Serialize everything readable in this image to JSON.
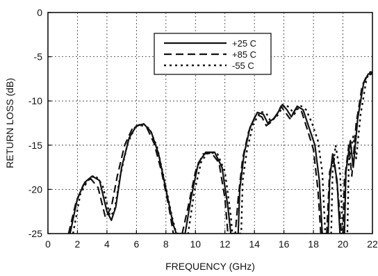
{
  "chart_data": {
    "type": "line",
    "title": "",
    "xlabel": "FREQUENCY (GHz)",
    "ylabel": "RETURN LOSS (dB)",
    "xlim": [
      0,
      22
    ],
    "ylim": [
      -25,
      0
    ],
    "xticks": [
      0,
      2,
      4,
      6,
      8,
      10,
      12,
      14,
      16,
      18,
      20,
      22
    ],
    "yticks": [
      0,
      -5,
      -10,
      -15,
      -20,
      -25
    ],
    "grid": true,
    "grid_style": "dotted",
    "legend_position": "top-center",
    "series": [
      {
        "name": "+25 C",
        "style": "solid",
        "points": [
          [
            1.5,
            -25
          ],
          [
            2.0,
            -21.0
          ],
          [
            2.5,
            -19.2
          ],
          [
            3.0,
            -18.5
          ],
          [
            3.5,
            -19.0
          ],
          [
            4.0,
            -22.5
          ],
          [
            4.3,
            -23.5
          ],
          [
            4.6,
            -22.0
          ],
          [
            5.0,
            -17.5
          ],
          [
            5.5,
            -14.2
          ],
          [
            6.0,
            -12.8
          ],
          [
            6.5,
            -12.6
          ],
          [
            7.0,
            -13.5
          ],
          [
            7.5,
            -16.0
          ],
          [
            8.0,
            -20.0
          ],
          [
            8.5,
            -24.0
          ],
          [
            8.7,
            -25
          ],
          [
            9.3,
            -25
          ],
          [
            9.7,
            -21.0
          ],
          [
            10.2,
            -17.0
          ],
          [
            10.7,
            -15.8
          ],
          [
            11.3,
            -15.8
          ],
          [
            11.8,
            -17.5
          ],
          [
            12.2,
            -22.0
          ],
          [
            12.4,
            -25
          ],
          [
            12.9,
            -25
          ],
          [
            13.0,
            -20.0
          ],
          [
            13.3,
            -16.0
          ],
          [
            13.7,
            -13.0
          ],
          [
            14.2,
            -11.3
          ],
          [
            14.6,
            -11.5
          ],
          [
            14.9,
            -12.5
          ],
          [
            15.3,
            -12.0
          ],
          [
            15.6,
            -11.3
          ],
          [
            15.9,
            -10.4
          ],
          [
            16.2,
            -11.0
          ],
          [
            16.5,
            -11.8
          ],
          [
            16.9,
            -10.6
          ],
          [
            17.3,
            -11.0
          ],
          [
            17.7,
            -13.0
          ],
          [
            18.1,
            -15.0
          ],
          [
            18.4,
            -19.0
          ],
          [
            18.6,
            -25
          ],
          [
            19.0,
            -25
          ],
          [
            19.1,
            -19.0
          ],
          [
            19.3,
            -16.0
          ],
          [
            19.6,
            -19.0
          ],
          [
            19.8,
            -25
          ],
          [
            20.1,
            -25
          ],
          [
            20.2,
            -18.0
          ],
          [
            20.5,
            -14.5
          ],
          [
            20.7,
            -17.5
          ],
          [
            21.0,
            -12.0
          ],
          [
            21.2,
            -10.0
          ],
          [
            21.4,
            -8.0
          ],
          [
            21.7,
            -7.0
          ],
          [
            22.0,
            -6.7
          ]
        ]
      },
      {
        "name": "+85 C",
        "style": "dashed",
        "points": [
          [
            1.4,
            -25
          ],
          [
            1.9,
            -21.5
          ],
          [
            2.4,
            -19.5
          ],
          [
            2.9,
            -18.8
          ],
          [
            3.4,
            -19.8
          ],
          [
            3.9,
            -23.2
          ],
          [
            4.3,
            -22.0
          ],
          [
            4.7,
            -18.5
          ],
          [
            5.2,
            -15.0
          ],
          [
            5.7,
            -13.2
          ],
          [
            6.2,
            -12.7
          ],
          [
            6.7,
            -13.0
          ],
          [
            7.2,
            -14.8
          ],
          [
            7.7,
            -18.0
          ],
          [
            8.2,
            -22.0
          ],
          [
            8.5,
            -25
          ],
          [
            9.1,
            -25
          ],
          [
            9.5,
            -22.0
          ],
          [
            10.0,
            -18.0
          ],
          [
            10.5,
            -16.0
          ],
          [
            11.1,
            -15.9
          ],
          [
            11.6,
            -17.0
          ],
          [
            12.0,
            -21.0
          ],
          [
            12.2,
            -25
          ],
          [
            12.7,
            -25
          ],
          [
            12.9,
            -21.0
          ],
          [
            13.2,
            -16.5
          ],
          [
            13.6,
            -13.5
          ],
          [
            14.1,
            -11.5
          ],
          [
            14.5,
            -11.8
          ],
          [
            14.8,
            -12.8
          ],
          [
            15.2,
            -12.3
          ],
          [
            15.5,
            -11.6
          ],
          [
            15.8,
            -10.6
          ],
          [
            16.1,
            -11.3
          ],
          [
            16.4,
            -12.0
          ],
          [
            16.8,
            -10.9
          ],
          [
            17.2,
            -11.2
          ],
          [
            17.6,
            -13.3
          ],
          [
            18.0,
            -15.5
          ],
          [
            18.3,
            -20.0
          ],
          [
            18.5,
            -25
          ],
          [
            18.9,
            -25
          ],
          [
            19.1,
            -18.0
          ],
          [
            19.4,
            -16.5
          ],
          [
            19.7,
            -21.0
          ],
          [
            19.9,
            -25
          ],
          [
            20.0,
            -25
          ],
          [
            20.1,
            -19.0
          ],
          [
            20.4,
            -15.0
          ],
          [
            20.6,
            -18.5
          ],
          [
            20.9,
            -12.5
          ],
          [
            21.1,
            -10.5
          ],
          [
            21.3,
            -8.3
          ],
          [
            21.6,
            -7.2
          ],
          [
            22.0,
            -6.9
          ]
        ]
      },
      {
        "name": "-55 C",
        "style": "dotted",
        "points": [
          [
            1.7,
            -25
          ],
          [
            2.2,
            -20.5
          ],
          [
            2.7,
            -19.0
          ],
          [
            3.2,
            -18.4
          ],
          [
            3.7,
            -19.5
          ],
          [
            4.2,
            -23.0
          ],
          [
            4.5,
            -22.5
          ],
          [
            4.9,
            -18.5
          ],
          [
            5.4,
            -14.8
          ],
          [
            5.9,
            -13.0
          ],
          [
            6.4,
            -12.5
          ],
          [
            6.9,
            -13.2
          ],
          [
            7.4,
            -15.2
          ],
          [
            7.9,
            -19.0
          ],
          [
            8.4,
            -23.0
          ],
          [
            8.7,
            -25
          ],
          [
            9.5,
            -25
          ],
          [
            9.9,
            -20.5
          ],
          [
            10.4,
            -16.8
          ],
          [
            10.9,
            -15.8
          ],
          [
            11.5,
            -16.0
          ],
          [
            12.0,
            -18.0
          ],
          [
            12.4,
            -23.0
          ],
          [
            12.5,
            -25
          ],
          [
            13.1,
            -25
          ],
          [
            13.2,
            -19.0
          ],
          [
            13.5,
            -15.5
          ],
          [
            13.9,
            -12.7
          ],
          [
            14.4,
            -11.2
          ],
          [
            14.8,
            -11.4
          ],
          [
            15.1,
            -12.3
          ],
          [
            15.5,
            -11.8
          ],
          [
            15.8,
            -11.0
          ],
          [
            16.1,
            -10.4
          ],
          [
            16.4,
            -10.8
          ],
          [
            16.7,
            -11.5
          ],
          [
            17.1,
            -10.5
          ],
          [
            17.5,
            -11.0
          ],
          [
            17.9,
            -12.5
          ],
          [
            18.3,
            -14.5
          ],
          [
            18.6,
            -18.0
          ],
          [
            18.8,
            -25
          ],
          [
            19.2,
            -25
          ],
          [
            19.3,
            -18.0
          ],
          [
            19.5,
            -15.0
          ],
          [
            19.8,
            -18.0
          ],
          [
            20.0,
            -25
          ],
          [
            20.3,
            -25
          ],
          [
            20.4,
            -17.0
          ],
          [
            20.7,
            -14.0
          ],
          [
            20.9,
            -16.5
          ],
          [
            21.2,
            -11.5
          ],
          [
            21.4,
            -9.5
          ],
          [
            21.6,
            -7.5
          ],
          [
            21.8,
            -6.8
          ],
          [
            22.0,
            -6.6
          ]
        ]
      }
    ]
  }
}
